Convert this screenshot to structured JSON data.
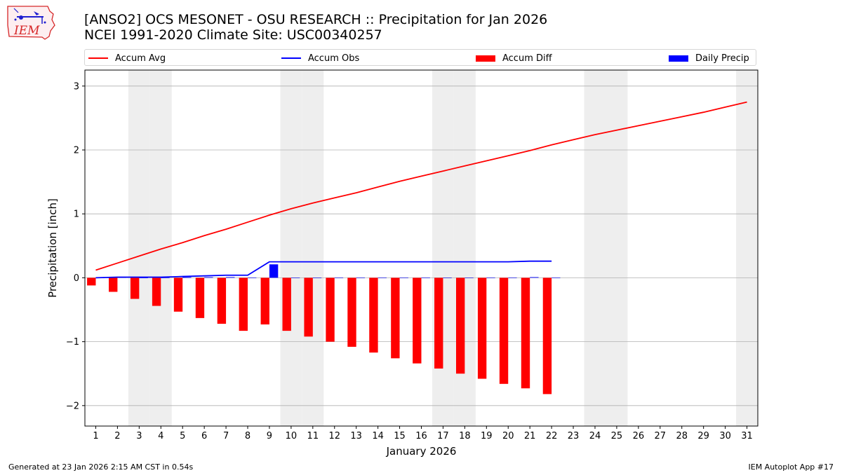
{
  "logo": {
    "text": "IEM",
    "color": "#d62728"
  },
  "header": {
    "title_line1": "[ANSO2] OCS MESONET - OSU RESEARCH :: Precipitation for Jan 2026",
    "title_line2": "NCEI 1991-2020 Climate Site: USC00340257"
  },
  "legend": {
    "accum_avg": "Accum Avg",
    "accum_obs": "Accum Obs",
    "accum_diff": "Accum Diff",
    "daily_precip": "Daily Precip"
  },
  "colors": {
    "avg": "#ff0000",
    "obs": "#0000ff",
    "diff": "#ff0000",
    "daily": "#0000ff",
    "weekend": "#eeeeee",
    "grid": "#b0b0b0"
  },
  "footer": {
    "generated": "Generated at 23 Jan 2026 2:15 AM CST in 0.54s",
    "app": "IEM Autoplot App #17"
  },
  "chart_data": {
    "type": "bar",
    "xlabel": "January 2026",
    "ylabel": "Precipitation [inch]",
    "xlim": [
      0.5,
      31.5
    ],
    "ylim": [
      -2.32,
      3.25
    ],
    "yticks": [
      -2,
      -1,
      0,
      1,
      2,
      3
    ],
    "ytick_labels": [
      "−2",
      "−1",
      "0",
      "1",
      "2",
      "3"
    ],
    "days": [
      1,
      2,
      3,
      4,
      5,
      6,
      7,
      8,
      9,
      10,
      11,
      12,
      13,
      14,
      15,
      16,
      17,
      18,
      19,
      20,
      21,
      22,
      23,
      24,
      25,
      26,
      27,
      28,
      29,
      30,
      31
    ],
    "weekend_days": [
      3,
      4,
      10,
      11,
      17,
      18,
      24,
      25,
      31
    ],
    "grid": true,
    "legend_position": "top",
    "series": [
      {
        "name": "Accum Avg",
        "type": "line",
        "values": [
          0.12,
          0.23,
          0.34,
          0.45,
          0.55,
          0.66,
          0.76,
          0.87,
          0.98,
          1.08,
          1.17,
          1.25,
          1.33,
          1.42,
          1.51,
          1.59,
          1.67,
          1.75,
          1.83,
          1.91,
          1.99,
          2.08,
          2.16,
          2.24,
          2.31,
          2.38,
          2.45,
          2.52,
          2.59,
          2.67,
          2.75
        ]
      },
      {
        "name": "Accum Obs",
        "type": "line",
        "values": [
          0.0,
          0.01,
          0.01,
          0.01,
          0.02,
          0.03,
          0.04,
          0.04,
          0.25,
          0.25,
          0.25,
          0.25,
          0.25,
          0.25,
          0.25,
          0.25,
          0.25,
          0.25,
          0.25,
          0.25,
          0.26,
          0.26
        ]
      },
      {
        "name": "Accum Diff",
        "type": "bar",
        "values": [
          -0.12,
          -0.22,
          -0.33,
          -0.44,
          -0.53,
          -0.63,
          -0.72,
          -0.83,
          -0.73,
          -0.83,
          -0.92,
          -1.0,
          -1.08,
          -1.17,
          -1.26,
          -1.34,
          -1.42,
          -1.5,
          -1.58,
          -1.66,
          -1.73,
          -1.82
        ]
      },
      {
        "name": "Daily Precip",
        "type": "bar",
        "values": [
          0.0,
          0.01,
          0.0,
          0.0,
          0.01,
          0.01,
          0.01,
          0.0,
          0.21,
          0.0,
          0.0,
          0.0,
          0.0,
          0.0,
          0.0,
          0.0,
          0.0,
          0.0,
          0.0,
          0.0,
          0.01,
          0.0
        ]
      }
    ]
  }
}
